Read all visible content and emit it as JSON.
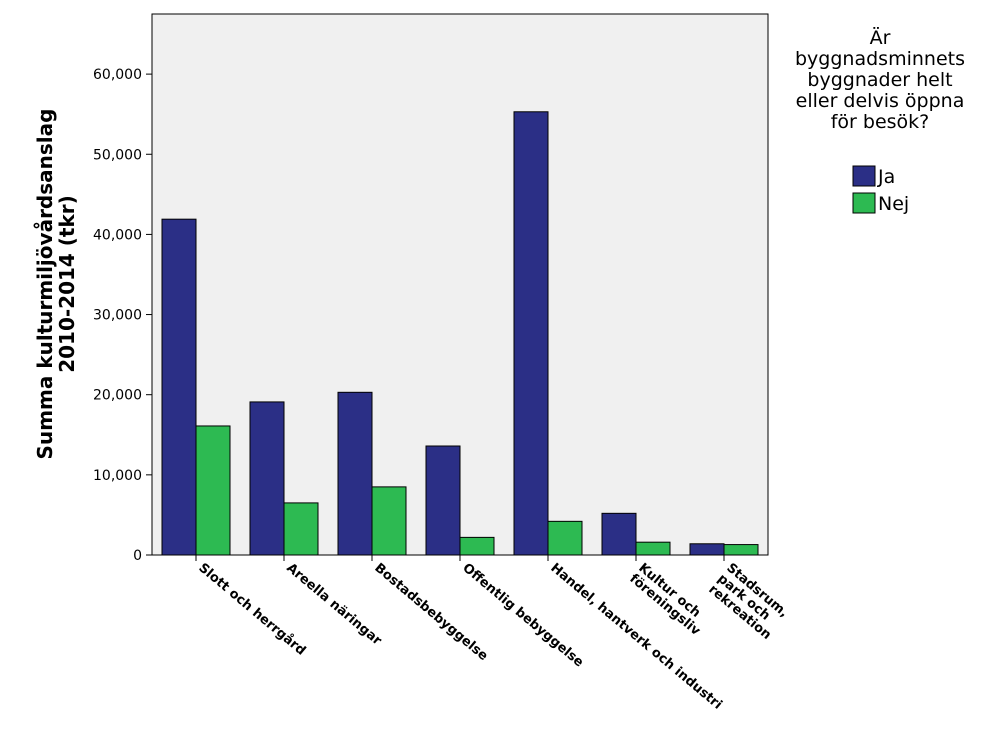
{
  "chart_data": {
    "type": "bar",
    "categories": [
      [
        "Slott och herrgård"
      ],
      [
        "Areella näringar"
      ],
      [
        "Bostadsbebyggelse"
      ],
      [
        "Offentlig bebyggelse"
      ],
      [
        "Handel, hantverk och industri"
      ],
      [
        "Kultur och",
        "föreningsliv"
      ],
      [
        "Stadsrum,",
        "park och",
        "rekreation"
      ]
    ],
    "series": [
      {
        "name": "Ja",
        "color": "#2b2f86",
        "values": [
          41900,
          19100,
          20300,
          13600,
          55300,
          5200,
          1400
        ]
      },
      {
        "name": "Nej",
        "color": "#2dba52",
        "values": [
          16100,
          6500,
          8500,
          2200,
          4200,
          1600,
          1300
        ]
      }
    ],
    "ylabel_lines": [
      "Summa kulturmiljövårdsanslag",
      "2010-2014 (tkr)"
    ],
    "yticks": [
      0,
      10000,
      20000,
      30000,
      40000,
      50000,
      60000
    ],
    "ytick_labels": [
      "0",
      "10,000",
      "20,000",
      "30,000",
      "40,000",
      "50,000",
      "60,000"
    ],
    "ylim": [
      0,
      67500
    ],
    "legend": {
      "title_lines": [
        "Är",
        "byggnadsminnets",
        "byggnader helt",
        "eller delvis öppna",
        "för besök?"
      ],
      "position": "right"
    },
    "plot_background": "#f0f0f0",
    "grid": false
  }
}
